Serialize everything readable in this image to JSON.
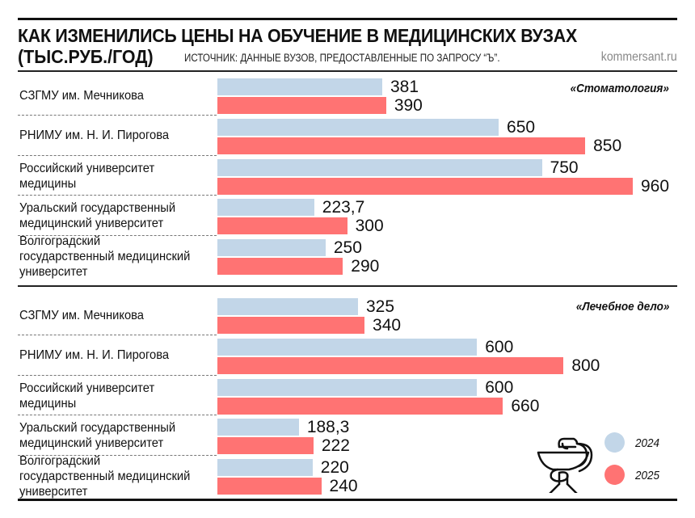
{
  "header": {
    "title": "КАК ИЗМЕНИЛИСЬ ЦЕНЫ НА ОБУЧЕНИЕ В МЕДИЦИНСКИХ ВУЗАХ",
    "unit": "(ТЫС.РУБ./ГОД)",
    "source": "ИСТОЧНИК: ДАННЫЕ ВУЗОВ, ПРЕДОСТАВЛЕННЫЕ ПО ЗАПРОСУ “Ъ”.",
    "brand": "kommersant.ru"
  },
  "legend": {
    "items": [
      {
        "label": "2024",
        "color": "#c2d6e8"
      },
      {
        "label": "2025",
        "color": "#ff7373"
      }
    ],
    "icon": "bowl-of-hygieia-icon"
  },
  "sections": [
    {
      "tag": "«Стоматология»",
      "rows": [
        {
          "label": "СЗГМУ им. Мечникова",
          "v2024": "381",
          "v2025": "390"
        },
        {
          "label": "РНИМУ им. Н. И. Пирогова",
          "v2024": "650",
          "v2025": "850"
        },
        {
          "label": "Российский университет медицины",
          "v2024": "750",
          "v2025": "960"
        },
        {
          "label": "Уральский государственный медицинский университет",
          "v2024": "223,7",
          "v2025": "300"
        },
        {
          "label": "Волгоградский государственный медицинский университет",
          "v2024": "250",
          "v2025": "290"
        }
      ]
    },
    {
      "tag": "«Лечебное дело»",
      "rows": [
        {
          "label": "СЗГМУ им. Мечникова",
          "v2024": "325",
          "v2025": "340"
        },
        {
          "label": "РНИМУ им. Н. И. Пирогова",
          "v2024": "600",
          "v2025": "800"
        },
        {
          "label": "Российский университет медицины",
          "v2024": "600",
          "v2025": "660"
        },
        {
          "label": "Уральский государственный медицинский университет",
          "v2024": "188,3",
          "v2025": "222"
        },
        {
          "label": "Волгоградский государственный медицинский университет",
          "v2024": "220",
          "v2025": "240"
        }
      ]
    }
  ],
  "chart_data": [
    {
      "type": "bar",
      "orientation": "horizontal",
      "title": "КАК ИЗМЕНИЛИСЬ ЦЕНЫ НА ОБУЧЕНИЕ В МЕДИЦИНСКИХ ВУЗАХ (ТЫС.РУБ./ГОД) — «Стоматология»",
      "categories": [
        "СЗГМУ им. Мечникова",
        "РНИМУ им. Н. И. Пирогова",
        "Российский университет медицины",
        "Уральский государственный медицинский университет",
        "Волгоградский государственный медицинский университет"
      ],
      "series": [
        {
          "name": "2024",
          "color": "#c2d6e8",
          "values": [
            381,
            650,
            750,
            223.7,
            250
          ]
        },
        {
          "name": "2025",
          "color": "#ff7373",
          "values": [
            390,
            850,
            960,
            300,
            290
          ]
        }
      ],
      "xlabel": "",
      "ylabel": "тыс. руб./год",
      "legend_position": "bottom-right",
      "grid": false
    },
    {
      "type": "bar",
      "orientation": "horizontal",
      "title": "КАК ИЗМЕНИЛИСЬ ЦЕНЫ НА ОБУЧЕНИЕ В МЕДИЦИНСКИХ ВУЗАХ (ТЫС.РУБ./ГОД) — «Лечебное дело»",
      "categories": [
        "СЗГМУ им. Мечникова",
        "РНИМУ им. Н. И. Пирогова",
        "Российский университет медицины",
        "Уральский государственный медицинский университет",
        "Волгоградский государственный медицинский университет"
      ],
      "series": [
        {
          "name": "2024",
          "color": "#c2d6e8",
          "values": [
            325,
            600,
            600,
            188.3,
            220
          ]
        },
        {
          "name": "2025",
          "color": "#ff7373",
          "values": [
            340,
            800,
            660,
            222,
            240
          ]
        }
      ],
      "xlabel": "",
      "ylabel": "тыс. руб./год",
      "legend_position": "bottom-right",
      "grid": false
    }
  ]
}
